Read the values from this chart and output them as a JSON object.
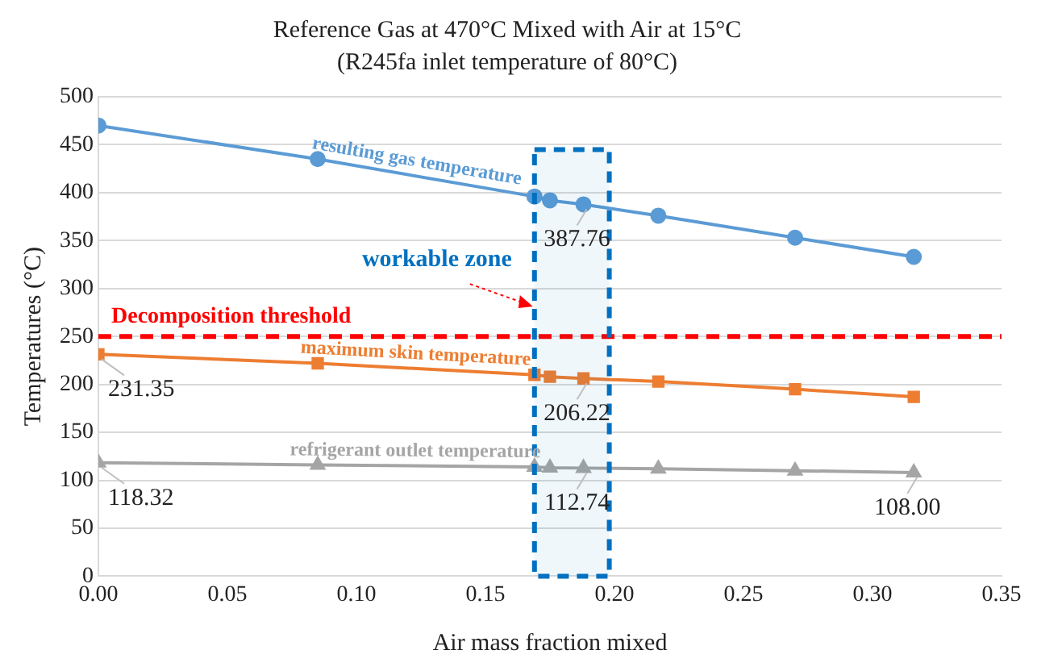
{
  "chart_data": {
    "type": "line",
    "title": "Reference Gas at 470°C Mixed with Air at 15°C",
    "subtitle": "(R245fa inlet temperature of 80°C)",
    "xlabel": "Air mass fraction mixed",
    "ylabel": "Temperatures (°C)",
    "x": [
      0,
      0.085,
      0.169,
      0.175,
      0.188,
      0.217,
      0.27,
      0.316
    ],
    "series": [
      {
        "name": "resulting gas temperature",
        "color": "#5b9bd5",
        "marker": "circle",
        "values": [
          470,
          435,
          396,
          392,
          387.76,
          376,
          353,
          333
        ],
        "value_labels": [
          null,
          null,
          null,
          null,
          "387.76",
          null,
          null,
          null
        ]
      },
      {
        "name": "maximum skin temperature",
        "color": "#ed7d31",
        "marker": "square",
        "values": [
          231.35,
          222,
          210,
          208,
          206.22,
          203,
          195,
          187
        ],
        "value_labels": [
          "231.35",
          null,
          null,
          null,
          "206.22",
          null,
          null,
          null
        ]
      },
      {
        "name": "refrigerant outlet temperature",
        "color": "#a5a5a5",
        "marker": "triangle",
        "values": [
          118.32,
          116,
          114,
          113,
          112.74,
          112,
          110,
          108.0
        ],
        "value_labels": [
          "118.32",
          null,
          null,
          null,
          "112.74",
          null,
          null,
          "108.00"
        ]
      }
    ],
    "xlim": [
      0,
      0.35
    ],
    "xticks": [
      {
        "value": 0,
        "label": "0.00"
      },
      {
        "value": 0.05,
        "label": "0.05"
      },
      {
        "value": 0.1,
        "label": "0.10"
      },
      {
        "value": 0.15,
        "label": "0.15"
      },
      {
        "value": 0.2,
        "label": "0.20"
      },
      {
        "value": 0.25,
        "label": "0.25"
      },
      {
        "value": 0.3,
        "label": "0.30"
      },
      {
        "value": 0.35,
        "label": "0.35"
      }
    ],
    "ylim": [
      0,
      500
    ],
    "yticks": [
      0,
      50,
      100,
      150,
      200,
      250,
      300,
      350,
      400,
      450,
      500
    ],
    "grid": "y",
    "legend": false,
    "line_style": "solid",
    "ref_lines": [
      {
        "axis": "y",
        "value": 250,
        "label": "Decomposition threshold",
        "color": "#ff0000",
        "line_style": "dashed"
      }
    ],
    "bands": [
      {
        "axis": "x",
        "from": 0.169,
        "to": 0.198,
        "label": "workable zone",
        "color": "#0070c0"
      }
    ]
  }
}
